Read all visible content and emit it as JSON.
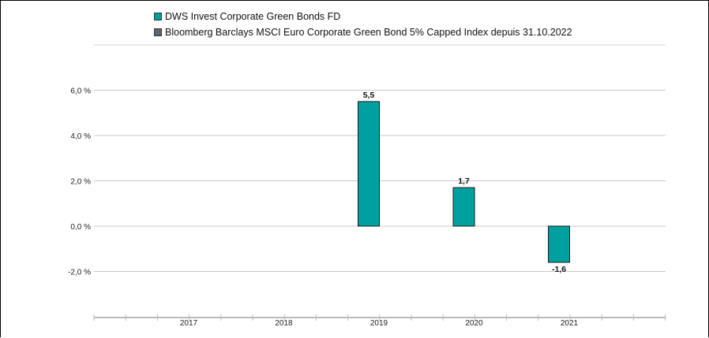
{
  "chart_data": {
    "type": "bar",
    "categories": [
      "2017",
      "2018",
      "2019",
      "2020",
      "2021"
    ],
    "series": [
      {
        "name": "DWS Invest Corporate Green Bonds  FD",
        "color": "#00a0a0",
        "values": [
          null,
          null,
          5.5,
          1.7,
          -1.6
        ],
        "value_labels": [
          "",
          "",
          "5,5",
          "1,7",
          "-1,6"
        ]
      },
      {
        "name": "Bloomberg Barclays MSCI Euro Corporate Green Bond 5% Capped Index depuis 31.10.2022",
        "color": "#5a6670",
        "values": [
          null,
          null,
          null,
          null,
          null
        ]
      }
    ],
    "yticks": [
      -2.0,
      0.0,
      2.0,
      4.0,
      6.0
    ],
    "ytick_labels": [
      "-2,0 %",
      "0,0 %",
      "2,0 %",
      "4,0 %",
      "6,0 %"
    ],
    "ylim": [
      -4.0,
      8.0
    ],
    "grid": true,
    "legend_position": "top-left",
    "title": "",
    "xlabel": "",
    "ylabel": ""
  }
}
